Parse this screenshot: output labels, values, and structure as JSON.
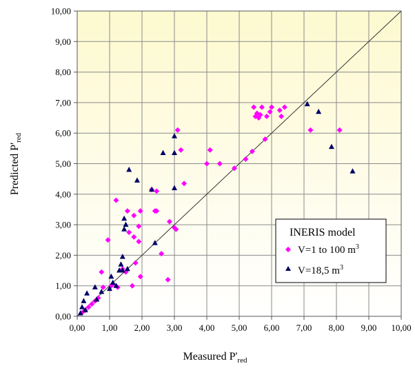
{
  "chart_data": {
    "type": "scatter",
    "xlabel": "Measured P'",
    "xlabel_sub": "red",
    "ylabel": "Predicted P'",
    "ylabel_sub": "red",
    "xlim": [
      0,
      10
    ],
    "ylim": [
      0,
      10
    ],
    "x_ticks": [
      "0,00",
      "1,00",
      "2,00",
      "3,00",
      "4,00",
      "5,00",
      "6,00",
      "7,00",
      "8,00",
      "9,00",
      "10,00"
    ],
    "y_ticks": [
      "0,00",
      "1,00",
      "2,00",
      "3,00",
      "4,00",
      "5,00",
      "6,00",
      "7,00",
      "8,00",
      "9,00",
      "10,00"
    ],
    "grid": true,
    "reference_line": {
      "from": [
        0,
        0
      ],
      "to": [
        10,
        10
      ],
      "color": "#333333"
    },
    "plot_background": {
      "top": "#fefce8",
      "bottom": "#fffee0",
      "gradient_top": "#fdf9cf",
      "gradient_bottom": "#ffffff"
    },
    "legend": {
      "title": "INERIS model",
      "position": "bottom-right",
      "entries": [
        {
          "label": "V=1 to 100 m",
          "sup": "3",
          "marker": "diamond",
          "color": "#ff00ff"
        },
        {
          "label": "V=18,5 m",
          "sup": "3",
          "marker": "triangle",
          "color": "#000066"
        }
      ]
    },
    "series": [
      {
        "name": "V=1 to 100 m3",
        "marker": "diamond",
        "color": "#ff00ff",
        "points": [
          [
            0.15,
            0.12
          ],
          [
            0.25,
            0.2
          ],
          [
            0.35,
            0.3
          ],
          [
            0.45,
            0.4
          ],
          [
            0.55,
            0.5
          ],
          [
            0.65,
            0.6
          ],
          [
            0.75,
            1.45
          ],
          [
            0.8,
            0.95
          ],
          [
            0.95,
            2.5
          ],
          [
            1.05,
            1.0
          ],
          [
            1.1,
            1.05
          ],
          [
            1.2,
            3.8
          ],
          [
            1.25,
            0.95
          ],
          [
            1.4,
            1.55
          ],
          [
            1.5,
            1.45
          ],
          [
            1.55,
            3.45
          ],
          [
            1.6,
            2.75
          ],
          [
            1.7,
            1.0
          ],
          [
            1.75,
            2.6
          ],
          [
            1.75,
            3.3
          ],
          [
            1.8,
            1.75
          ],
          [
            1.9,
            2.45
          ],
          [
            1.9,
            2.95
          ],
          [
            1.95,
            1.3
          ],
          [
            1.95,
            3.45
          ],
          [
            2.3,
            4.15
          ],
          [
            2.4,
            3.45
          ],
          [
            2.45,
            3.45
          ],
          [
            2.45,
            4.1
          ],
          [
            2.6,
            2.05
          ],
          [
            2.8,
            1.2
          ],
          [
            2.85,
            3.1
          ],
          [
            3.0,
            2.9
          ],
          [
            3.05,
            2.85
          ],
          [
            3.1,
            6.1
          ],
          [
            3.2,
            5.45
          ],
          [
            3.3,
            4.35
          ],
          [
            4.0,
            5.0
          ],
          [
            4.1,
            5.45
          ],
          [
            4.4,
            5.0
          ],
          [
            4.85,
            4.85
          ],
          [
            5.2,
            5.15
          ],
          [
            5.4,
            5.4
          ],
          [
            5.45,
            6.85
          ],
          [
            5.5,
            6.55
          ],
          [
            5.55,
            6.65
          ],
          [
            5.6,
            6.5
          ],
          [
            5.65,
            6.6
          ],
          [
            5.7,
            6.85
          ],
          [
            5.8,
            5.8
          ],
          [
            5.85,
            6.55
          ],
          [
            5.95,
            6.7
          ],
          [
            6.0,
            6.85
          ],
          [
            6.25,
            6.75
          ],
          [
            6.3,
            6.55
          ],
          [
            6.4,
            6.85
          ],
          [
            7.2,
            6.1
          ],
          [
            8.1,
            6.1
          ]
        ]
      },
      {
        "name": "V=18,5 m3",
        "marker": "triangle",
        "color": "#000066",
        "points": [
          [
            0.1,
            0.1
          ],
          [
            0.15,
            0.3
          ],
          [
            0.2,
            0.5
          ],
          [
            0.25,
            0.2
          ],
          [
            0.3,
            0.75
          ],
          [
            0.55,
            0.95
          ],
          [
            0.6,
            0.55
          ],
          [
            0.75,
            0.8
          ],
          [
            1.0,
            0.9
          ],
          [
            1.05,
            1.3
          ],
          [
            1.1,
            1.1
          ],
          [
            1.2,
            1.0
          ],
          [
            1.3,
            1.5
          ],
          [
            1.35,
            1.7
          ],
          [
            1.4,
            1.5
          ],
          [
            1.4,
            1.95
          ],
          [
            1.45,
            2.85
          ],
          [
            1.45,
            3.2
          ],
          [
            1.5,
            3.0
          ],
          [
            1.55,
            1.55
          ],
          [
            1.6,
            4.8
          ],
          [
            1.85,
            4.45
          ],
          [
            2.3,
            4.15
          ],
          [
            2.4,
            2.4
          ],
          [
            2.65,
            5.35
          ],
          [
            3.0,
            4.2
          ],
          [
            3.0,
            5.35
          ],
          [
            3.0,
            5.9
          ],
          [
            7.1,
            6.95
          ],
          [
            7.45,
            6.7
          ],
          [
            7.85,
            5.55
          ],
          [
            8.5,
            4.75
          ]
        ]
      }
    ]
  }
}
